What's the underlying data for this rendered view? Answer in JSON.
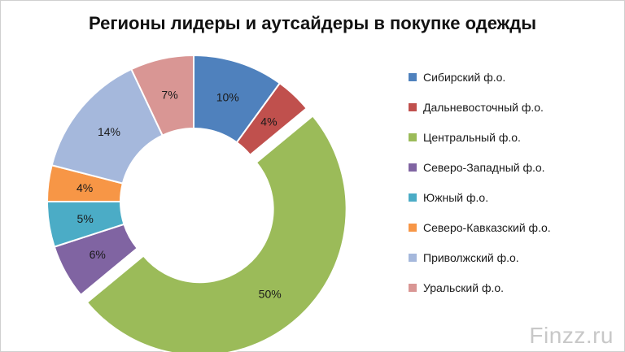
{
  "chart_data": {
    "type": "pie",
    "title": "Регионы лидеры и аутсайдеры в покупке одежды",
    "categories": [
      "Сибирский ф.о.",
      "Дальневосточный ф.о.",
      "Центральный ф.о.",
      "Северо-Западный ф.о.",
      "Южный ф.о.",
      "Северо-Кавказский ф.о.",
      "Приволжский ф.о.",
      "Уральский ф.о."
    ],
    "values": [
      10,
      4,
      50,
      6,
      5,
      4,
      14,
      7
    ],
    "labels": [
      "10%",
      "4%",
      "50%",
      "6%",
      "5%",
      "4%",
      "14%",
      "7%"
    ],
    "colors": [
      "#4f81bd",
      "#c0504d",
      "#9bbb59",
      "#8064a2",
      "#4bacc6",
      "#f79646",
      "#a5b8dc",
      "#d99694"
    ],
    "exploded_index": 2,
    "legend_position": "right"
  },
  "watermark": "Finzz.ru"
}
